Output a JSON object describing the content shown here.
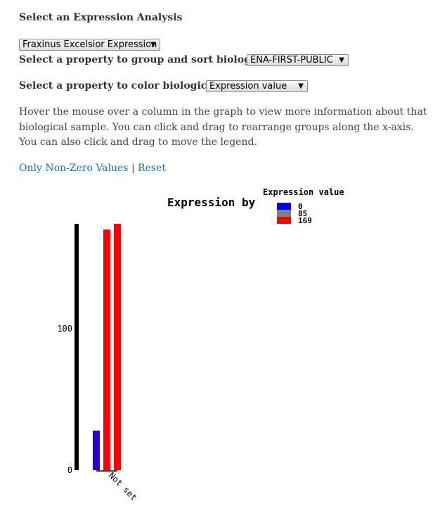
{
  "heading": "Select an Expression Analysis",
  "analysis_select": {
    "value": "Fraxinus Excelsior Expression"
  },
  "group_row": {
    "label": "Select a property to group and sort biological samples",
    "value": "ENA-FIRST-PUBLIC"
  },
  "color_row": {
    "label": "Select a property to color biological samples",
    "value": "Expression value"
  },
  "help_text": "Hover the mouse over a column in the graph to view more information about that biological sample. You can click and drag to rearrange groups along the x-axis. You can also click and drag to move the legend.",
  "links": {
    "non_zero": "Only Non-Zero Values",
    "separator": "|",
    "reset": "Reset"
  },
  "colors": {
    "link": "#1f6fa8",
    "low": "#0000ff",
    "mid": "#808080",
    "high": "#ff0000",
    "axis": "#000000"
  },
  "chart_data": {
    "type": "bar",
    "title": "Expression by",
    "ylim": [
      0,
      174
    ],
    "yticks": [
      0,
      100
    ],
    "groups": [
      {
        "name": "Not set",
        "values": [
          28,
          170,
          174
        ]
      }
    ],
    "legend": {
      "title": "Expression value",
      "placement": "top",
      "entries": [
        {
          "label": "0",
          "color": "#0000ff"
        },
        {
          "label": "85",
          "color": "#808080"
        },
        {
          "label": "169",
          "color": "#ff0000"
        }
      ]
    }
  }
}
